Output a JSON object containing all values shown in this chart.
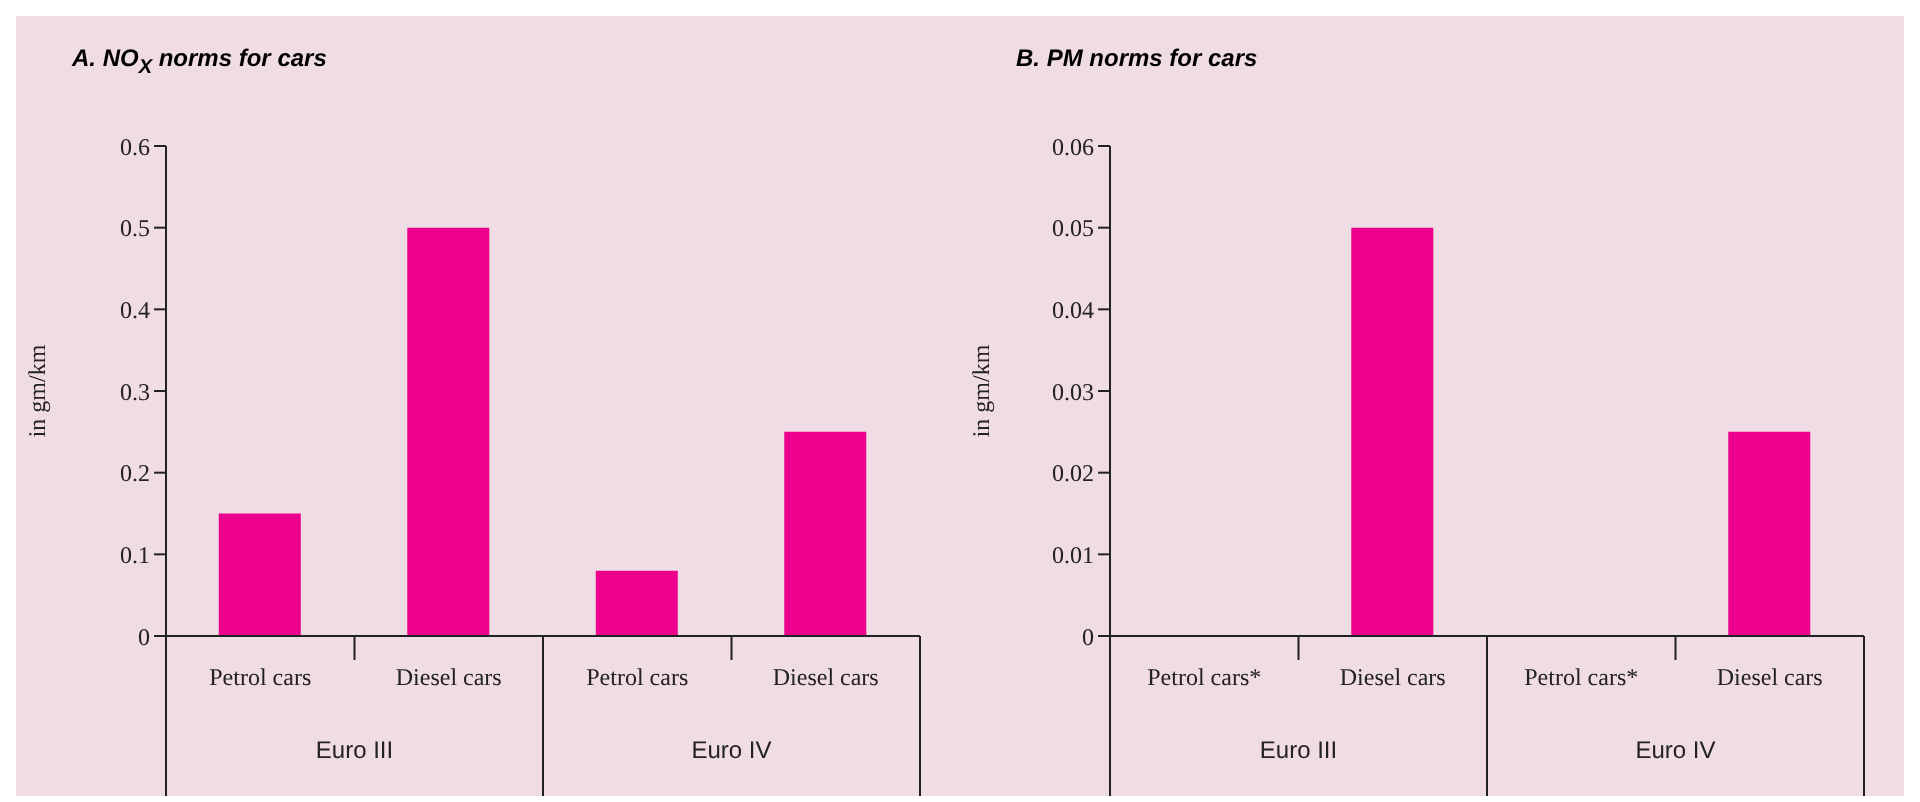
{
  "chart_data": [
    {
      "type": "bar",
      "title": "A. NO$_{X}$ norms for cars",
      "ylabel": "in gm/km",
      "categories": [
        "Petrol cars",
        "Diesel cars",
        "Petrol cars",
        "Diesel cars"
      ],
      "values": [
        0.15,
        0.5,
        0.08,
        0.25
      ],
      "color": "#ec008c",
      "ylim": [
        0,
        0.6
      ],
      "yticks": [
        0,
        0.1,
        0.2,
        0.3,
        0.4,
        0.5,
        0.6
      ],
      "grid": false,
      "annotations": [
        "Euro III",
        "Euro IV"
      ]
    },
    {
      "type": "bar",
      "title": "B. PM norms for cars",
      "ylabel": "in gm/km",
      "categories": [
        "Petrol cars*",
        "Diesel cars",
        "Petrol cars*",
        "Diesel cars"
      ],
      "values": [
        null,
        0.05,
        null,
        0.025
      ],
      "color": "#ec008c",
      "ylim": [
        0,
        0.06
      ],
      "yticks": [
        0,
        0.01,
        0.02,
        0.03,
        0.04,
        0.05,
        0.06
      ],
      "grid": false,
      "annotations": [
        "Euro III",
        "Euro IV"
      ]
    }
  ]
}
